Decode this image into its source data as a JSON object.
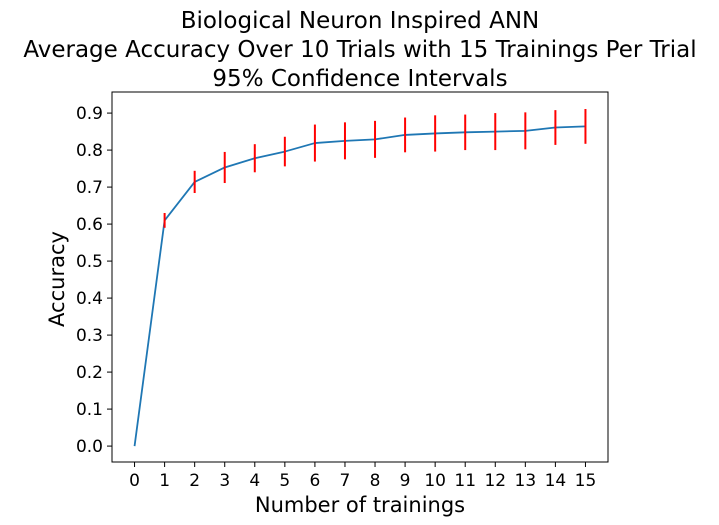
{
  "chart_data": {
    "type": "line",
    "title_lines": [
      "Biological Neuron Inspired ANN",
      "Average Accuracy Over 10 Trials with 15 Trainings Per Trial",
      "95% Confidence Intervals"
    ],
    "xlabel": "Number of trainings",
    "ylabel": "Accuracy",
    "xlim": [
      -0.75,
      15.75
    ],
    "ylim": [
      -0.043,
      0.957
    ],
    "x_ticks": [
      0,
      1,
      2,
      3,
      4,
      5,
      6,
      7,
      8,
      9,
      10,
      11,
      12,
      13,
      14,
      15
    ],
    "x_tick_labels": [
      "0",
      "1",
      "2",
      "3",
      "4",
      "5",
      "6",
      "7",
      "8",
      "9",
      "10",
      "11",
      "12",
      "13",
      "14",
      "15"
    ],
    "y_ticks": [
      0.0,
      0.1,
      0.2,
      0.3,
      0.4,
      0.5,
      0.6,
      0.7,
      0.8,
      0.9
    ],
    "y_tick_labels": [
      "0.0",
      "0.1",
      "0.2",
      "0.3",
      "0.4",
      "0.5",
      "0.6",
      "0.7",
      "0.8",
      "0.9"
    ],
    "grid": false,
    "series": [
      {
        "x": [
          0,
          1,
          2,
          3,
          4,
          5,
          6,
          7,
          8,
          9,
          10,
          11,
          12,
          13,
          14,
          15
        ],
        "y": [
          0.0,
          0.61,
          0.714,
          0.753,
          0.778,
          0.796,
          0.819,
          0.825,
          0.829,
          0.841,
          0.845,
          0.848,
          0.85,
          0.852,
          0.861,
          0.864
        ],
        "error": [
          0.0,
          0.02,
          0.03,
          0.042,
          0.038,
          0.04,
          0.05,
          0.05,
          0.05,
          0.047,
          0.049,
          0.048,
          0.05,
          0.05,
          0.047,
          0.047
        ],
        "color": "#1f77b4",
        "error_color": "#ff0000"
      }
    ]
  }
}
